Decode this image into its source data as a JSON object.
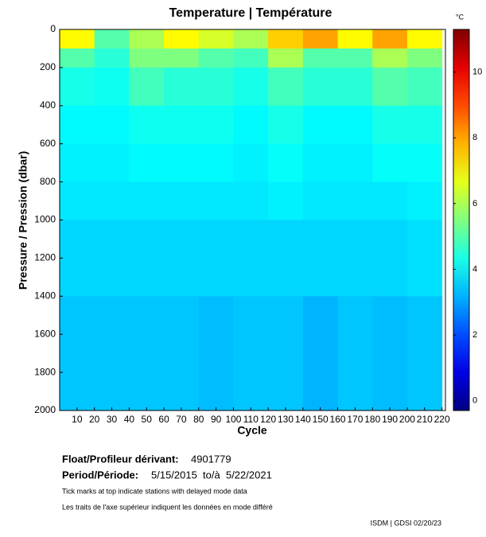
{
  "chart_data": {
    "type": "heatmap",
    "title": "Temperature | Température",
    "xlabel": "Cycle",
    "ylabel": "Pressure / Pression (dbar)",
    "colorbar_label": "°C",
    "xbins": [
      0,
      20,
      40,
      60,
      80,
      100,
      120,
      140,
      160,
      180,
      200,
      220
    ],
    "ybins": [
      0,
      100,
      200,
      400,
      600,
      800,
      1000,
      1400,
      2000
    ],
    "values": [
      [
        7,
        5,
        6,
        7,
        6.5,
        6,
        7.5,
        8,
        7,
        8,
        7
      ],
      [
        5,
        4.5,
        5.5,
        5.5,
        5,
        4.8,
        6,
        5,
        5,
        6,
        5.5
      ],
      [
        4.3,
        4.2,
        4.8,
        4.5,
        4.5,
        4.3,
        4.8,
        4.5,
        4.5,
        5,
        4.8
      ],
      [
        4,
        4,
        4.2,
        4.2,
        4.2,
        4,
        4.3,
        4,
        4,
        4.3,
        4.3
      ],
      [
        3.9,
        3.9,
        4,
        4,
        4,
        3.9,
        4.1,
        3.9,
        3.9,
        4.1,
        4.1
      ],
      [
        3.8,
        3.8,
        3.8,
        3.8,
        3.8,
        3.8,
        3.9,
        3.8,
        3.8,
        3.8,
        3.9
      ],
      [
        3.6,
        3.6,
        3.6,
        3.6,
        3.6,
        3.6,
        3.6,
        3.6,
        3.6,
        3.6,
        3.7
      ],
      [
        3.4,
        3.4,
        3.4,
        3.4,
        3.3,
        3.4,
        3.4,
        3.2,
        3.4,
        3.3,
        3.4
      ]
    ],
    "xlim": [
      0,
      222
    ],
    "xticks": [
      10,
      20,
      30,
      40,
      50,
      60,
      70,
      80,
      90,
      100,
      110,
      120,
      130,
      140,
      150,
      160,
      170,
      180,
      190,
      200,
      210,
      220
    ],
    "ylim": [
      2000,
      0
    ],
    "yticks": [
      0,
      200,
      400,
      600,
      800,
      1000,
      1200,
      1400,
      1600,
      1800,
      2000
    ],
    "clim": [
      -0.3,
      11.3
    ],
    "cticks": [
      0,
      2,
      4,
      6,
      8,
      10
    ],
    "colormap": "jet"
  },
  "footer": {
    "float_label": "Float/Profileur dérivant:",
    "float_id": "4901779",
    "period_label": "Period/Période:",
    "period": "5/15/2015  to/à  5/22/2021",
    "note_en": "Tick marks at top indicate stations with delayed mode data",
    "note_fr": "Les traits de l'axe supérieur indiquent les données en mode différé",
    "credit": "ISDM | GDSI 02/20/23"
  }
}
